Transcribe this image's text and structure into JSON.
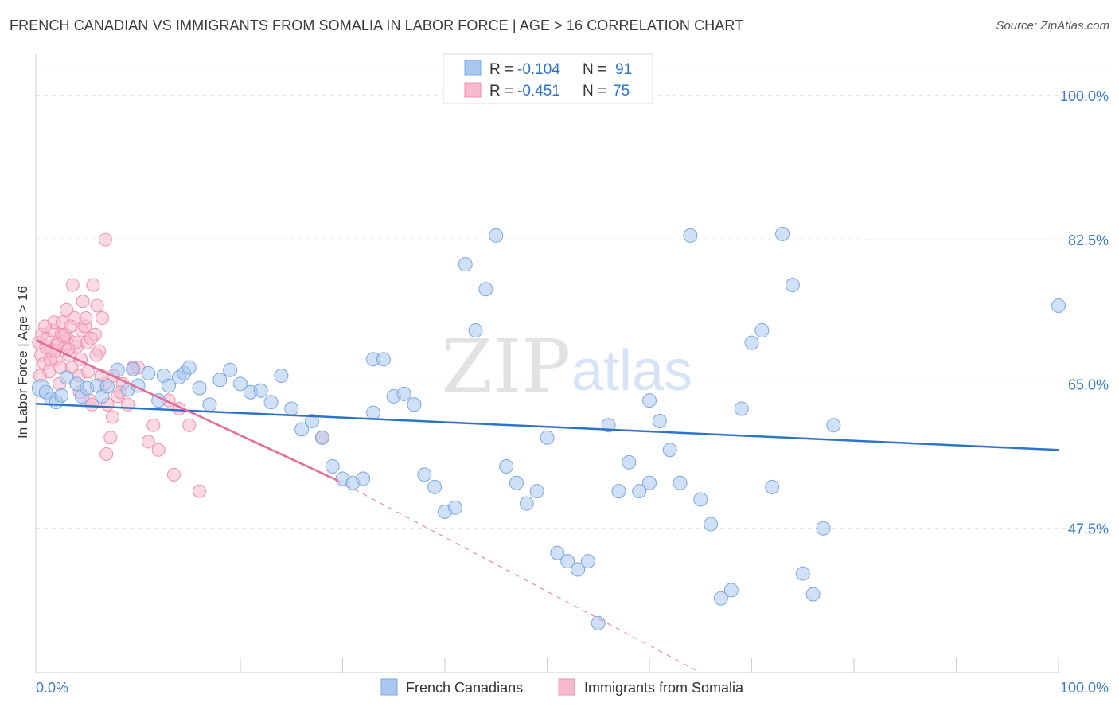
{
  "header": {
    "title": "FRENCH CANADIAN VS IMMIGRANTS FROM SOMALIA IN LABOR FORCE | AGE > 16 CORRELATION CHART",
    "source": "Source: ZipAtlas.com"
  },
  "watermark": {
    "zip": "ZIP",
    "atlas": "atlas"
  },
  "colors": {
    "blue_fill": "#a9c8f0",
    "blue_stroke": "#7ba7df",
    "blue_line": "#2f73c9",
    "pink_fill": "#f7b9cc",
    "pink_stroke": "#ee8fae",
    "pink_line": "#e46a97",
    "axis_text": "#3d7bd0",
    "grid": "#dddddd"
  },
  "chart_data": {
    "type": "scatter",
    "title": "FRENCH CANADIAN VS IMMIGRANTS FROM SOMALIA IN LABOR FORCE | AGE > 16 CORRELATION CHART",
    "xlabel": "",
    "ylabel": "In Labor Force | Age > 16",
    "xlim": [
      0,
      100
    ],
    "ylim": [
      30,
      105
    ],
    "x_tick_labels": [
      "0.0%",
      "100.0%"
    ],
    "y_ticks": [
      {
        "value": 100,
        "label": "100.0%"
      },
      {
        "value": 82.5,
        "label": "82.5%"
      },
      {
        "value": 65,
        "label": "65.0%"
      },
      {
        "value": 47.5,
        "label": "47.5%"
      }
    ],
    "legend": [
      {
        "series": "French Canadians",
        "r_label": "R =",
        "r_value": "-0.104",
        "n_label": "N =",
        "n_value": "91"
      },
      {
        "series": "Immigrants from Somalia",
        "r_label": "R =",
        "r_value": "-0.451",
        "n_label": "N =",
        "n_value": "75"
      }
    ],
    "series": [
      {
        "name": "French Canadians",
        "trend": {
          "x0": 0,
          "y0": 62.6,
          "x1": 100,
          "y1": 57.0
        },
        "points": [
          [
            0.5,
            64.5
          ],
          [
            1,
            64
          ],
          [
            1.5,
            63.2
          ],
          [
            2,
            62.8
          ],
          [
            2.5,
            63.6
          ],
          [
            3,
            65.8
          ],
          [
            4,
            65
          ],
          [
            4.5,
            63.5
          ],
          [
            5,
            64.5
          ],
          [
            6,
            64.8
          ],
          [
            6.5,
            63.5
          ],
          [
            7,
            64.7
          ],
          [
            8,
            66.7
          ],
          [
            9,
            64.3
          ],
          [
            9.5,
            66.8
          ],
          [
            10,
            64.8
          ],
          [
            11,
            66.3
          ],
          [
            12,
            63
          ],
          [
            12.5,
            66
          ],
          [
            13,
            64.8
          ],
          [
            14,
            65.8
          ],
          [
            14.5,
            66.3
          ],
          [
            15,
            67
          ],
          [
            16,
            64.5
          ],
          [
            17,
            62.5
          ],
          [
            18,
            65.5
          ],
          [
            19,
            66.7
          ],
          [
            20,
            65
          ],
          [
            21,
            64
          ],
          [
            22,
            64.2
          ],
          [
            23,
            62.8
          ],
          [
            24,
            66
          ],
          [
            25,
            62
          ],
          [
            26,
            59.5
          ],
          [
            27,
            60.5
          ],
          [
            28,
            58.5
          ],
          [
            29,
            55
          ],
          [
            30,
            53.5
          ],
          [
            31,
            53
          ],
          [
            32,
            53.5
          ],
          [
            33,
            68
          ],
          [
            34,
            68
          ],
          [
            35,
            63.5
          ],
          [
            36,
            63.8
          ],
          [
            37,
            62.5
          ],
          [
            38,
            54
          ],
          [
            39,
            52.5
          ],
          [
            40,
            49.5
          ],
          [
            41,
            50
          ],
          [
            42,
            79.5
          ],
          [
            43,
            71.5
          ],
          [
            44,
            76.5
          ],
          [
            45,
            83
          ],
          [
            46,
            55
          ],
          [
            47,
            53
          ],
          [
            48,
            50.5
          ],
          [
            49,
            52
          ],
          [
            50,
            58.5
          ],
          [
            51,
            44.5
          ],
          [
            52,
            43.5
          ],
          [
            53,
            42.5
          ],
          [
            54,
            43.5
          ],
          [
            55,
            36
          ],
          [
            56,
            60
          ],
          [
            57,
            52
          ],
          [
            58,
            55.5
          ],
          [
            59,
            52
          ],
          [
            60,
            63
          ],
          [
            61,
            60.5
          ],
          [
            62,
            57
          ],
          [
            63,
            53
          ],
          [
            64,
            83
          ],
          [
            65,
            51
          ],
          [
            66,
            48
          ],
          [
            67,
            39
          ],
          [
            68,
            40
          ],
          [
            69,
            62
          ],
          [
            70,
            70
          ],
          [
            71,
            71.5
          ],
          [
            72,
            52.5
          ],
          [
            73,
            83.2
          ],
          [
            74,
            77
          ],
          [
            75,
            42
          ],
          [
            76,
            39.5
          ],
          [
            77,
            47.5
          ],
          [
            78,
            60
          ],
          [
            100,
            74.5
          ],
          [
            33,
            61.5
          ],
          [
            60,
            53
          ]
        ]
      },
      {
        "name": "Immigrants from Somalia",
        "trend": {
          "x0": 0,
          "y0": 70.3,
          "x1": 29.5,
          "y1": 53.3,
          "dash_x1": 65,
          "dash_y1": 30
        },
        "points": [
          [
            0.3,
            70
          ],
          [
            0.5,
            68.5
          ],
          [
            0.6,
            71
          ],
          [
            0.8,
            67.5
          ],
          [
            1,
            69.5
          ],
          [
            1.1,
            70.5
          ],
          [
            1.3,
            66.5
          ],
          [
            1.5,
            69
          ],
          [
            1.6,
            71.5
          ],
          [
            1.8,
            72.5
          ],
          [
            2,
            68
          ],
          [
            2.1,
            70
          ],
          [
            2.3,
            65
          ],
          [
            2.5,
            71
          ],
          [
            2.6,
            72.5
          ],
          [
            2.8,
            69.5
          ],
          [
            3,
            74
          ],
          [
            3.1,
            70.5
          ],
          [
            3.3,
            68.5
          ],
          [
            3.5,
            67
          ],
          [
            3.6,
            77
          ],
          [
            3.8,
            73
          ],
          [
            4,
            69.5
          ],
          [
            4.2,
            66
          ],
          [
            4.3,
            64
          ],
          [
            4.5,
            71.5
          ],
          [
            4.6,
            75
          ],
          [
            4.8,
            72
          ],
          [
            5,
            70
          ],
          [
            5.1,
            66.5
          ],
          [
            5.3,
            63
          ],
          [
            5.5,
            62.5
          ],
          [
            5.6,
            77
          ],
          [
            5.8,
            71
          ],
          [
            6,
            74.5
          ],
          [
            6.2,
            69
          ],
          [
            6.5,
            73
          ],
          [
            6.8,
            65
          ],
          [
            7,
            62.5
          ],
          [
            7.3,
            58.5
          ],
          [
            7.6,
            66
          ],
          [
            8,
            63.5
          ],
          [
            8.5,
            65
          ],
          [
            9,
            62.5
          ],
          [
            10,
            67
          ],
          [
            11,
            58
          ],
          [
            12,
            57
          ],
          [
            13,
            63
          ],
          [
            14,
            62
          ],
          [
            15,
            60
          ],
          [
            0.4,
            66
          ],
          [
            0.9,
            72
          ],
          [
            1.4,
            68
          ],
          [
            1.9,
            69
          ],
          [
            2.4,
            67
          ],
          [
            2.9,
            71
          ],
          [
            3.4,
            72
          ],
          [
            3.9,
            70
          ],
          [
            4.4,
            68
          ],
          [
            4.9,
            73
          ],
          [
            5.4,
            70.5
          ],
          [
            5.9,
            68.5
          ],
          [
            6.4,
            66
          ],
          [
            6.9,
            56.5
          ],
          [
            7.5,
            61
          ],
          [
            8.3,
            64
          ],
          [
            9.5,
            67
          ],
          [
            11.5,
            60
          ],
          [
            13.5,
            54
          ],
          [
            16,
            52
          ],
          [
            28,
            58.5
          ],
          [
            2.2,
            69.8
          ],
          [
            2.7,
            70.8
          ],
          [
            3.2,
            69.2
          ],
          [
            6.8,
            82.5
          ]
        ]
      }
    ]
  }
}
